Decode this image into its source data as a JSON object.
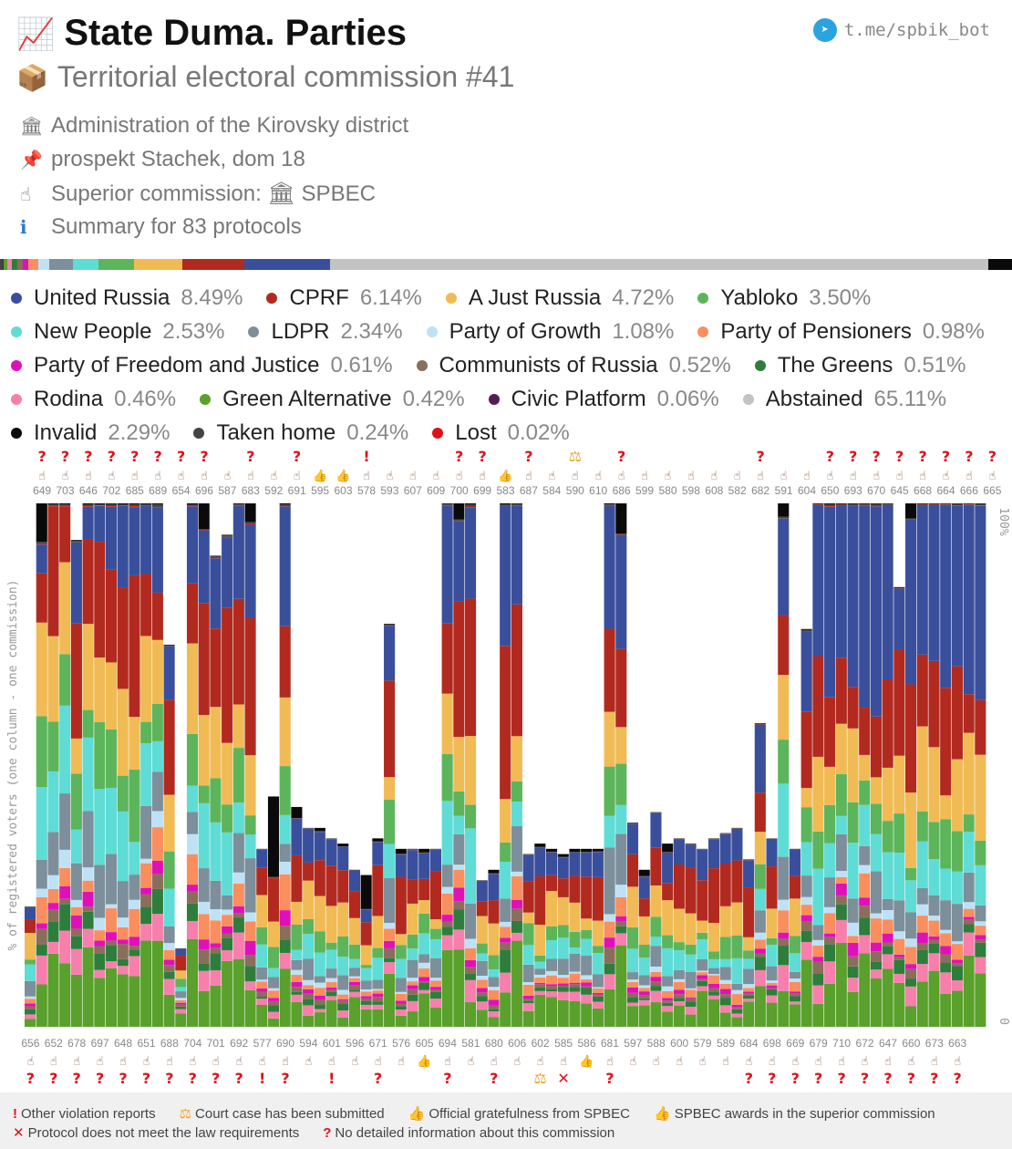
{
  "header": {
    "title": "State Duma. Parties",
    "subtitle": "Territorial electoral commission #41",
    "telegram": "t.me/spbik_bot",
    "admin": "Administration of the Kirovsky district",
    "address": "prospekt Stachek, dom 18",
    "superior": "Superior commission: 🏛 SPBEC",
    "summary": "Summary for 83 protocols"
  },
  "legend": [
    {
      "name": "United Russia",
      "pct": "8.49%",
      "color": "#3a4f9c"
    },
    {
      "name": "CPRF",
      "pct": "6.14%",
      "color": "#b22a1f"
    },
    {
      "name": "A Just Russia",
      "pct": "4.72%",
      "color": "#f0bb55"
    },
    {
      "name": "Yabloko",
      "pct": "3.50%",
      "color": "#5db55b"
    },
    {
      "name": "New People",
      "pct": "2.53%",
      "color": "#5fdcd5"
    },
    {
      "name": "LDPR",
      "pct": "2.34%",
      "color": "#7c8f9b"
    },
    {
      "name": "Party of Growth",
      "pct": "1.08%",
      "color": "#bfe1f5"
    },
    {
      "name": "Party of Pensioners",
      "pct": "0.98%",
      "color": "#fa8e5e"
    },
    {
      "name": "Party of Freedom and Justice",
      "pct": "0.61%",
      "color": "#e010b9"
    },
    {
      "name": "Communists of Russia",
      "pct": "0.52%",
      "color": "#8b6d5c"
    },
    {
      "name": "The Greens",
      "pct": "0.51%",
      "color": "#2e7d3c"
    },
    {
      "name": "Rodina",
      "pct": "0.46%",
      "color": "#f67fab"
    },
    {
      "name": "Green Alternative",
      "pct": "0.42%",
      "color": "#5aa02c"
    },
    {
      "name": "Civic Platform",
      "pct": "0.06%",
      "color": "#5a1a5a"
    },
    {
      "name": "Abstained",
      "pct": "65.11%",
      "color": "#c3c3c3"
    },
    {
      "name": "Invalid",
      "pct": "2.29%",
      "color": "#0a0a0a"
    },
    {
      "name": "Taken home",
      "pct": "0.24%",
      "color": "#444444"
    },
    {
      "name": "Lost",
      "pct": "0.02%",
      "color": "#e0101a"
    }
  ],
  "chart_data": {
    "type": "bar",
    "stacked": true,
    "ylabel": "% of registered voters (one column - one commission)",
    "y_tick_labels": [
      "0",
      "100%"
    ],
    "ylim": [
      0,
      100
    ],
    "categories": [
      "656",
      "649",
      "652",
      "703",
      "678",
      "646",
      "697",
      "702",
      "648",
      "685",
      "651",
      "689",
      "654",
      "688",
      "696",
      "704",
      "587",
      "701",
      "683",
      "692",
      "592",
      "577",
      "691",
      "690",
      "595",
      "594",
      "603",
      "601",
      "578",
      "596",
      "593",
      "671",
      "607",
      "576",
      "609",
      "605",
      "700",
      "694",
      "699",
      "581",
      "583",
      "680",
      "687",
      "606",
      "584",
      "602",
      "590",
      "585",
      "610",
      "586",
      "686",
      "681",
      "599",
      "597",
      "580",
      "588",
      "598",
      "600",
      "608",
      "579",
      "582",
      "589",
      "682",
      "684",
      "591",
      "698",
      "604",
      "669",
      "650",
      "679",
      "693",
      "710",
      "670",
      "672",
      "645",
      "647",
      "668",
      "660",
      "664",
      "673",
      "666",
      "663",
      "665"
    ],
    "top_labels": [
      "649",
      "703",
      "646",
      "702",
      "685",
      "689",
      "654",
      "696",
      "587",
      "683",
      "592",
      "691",
      "595",
      "603",
      "578",
      "593",
      "607",
      "609",
      "700",
      "699",
      "583",
      "687",
      "584",
      "590",
      "610",
      "686",
      "599",
      "580",
      "598",
      "608",
      "582",
      "682",
      "591",
      "604",
      "650",
      "693",
      "670",
      "645",
      "668",
      "664",
      "666",
      "665"
    ],
    "bottom_labels": [
      "656",
      "652",
      "678",
      "697",
      "648",
      "651",
      "688",
      "704",
      "701",
      "692",
      "577",
      "690",
      "594",
      "601",
      "596",
      "671",
      "576",
      "605",
      "694",
      "581",
      "680",
      "606",
      "602",
      "585",
      "586",
      "681",
      "597",
      "588",
      "600",
      "579",
      "589",
      "684",
      "698",
      "669",
      "679",
      "710",
      "672",
      "647",
      "660",
      "673",
      "663"
    ],
    "top_marks": [
      {
        "v": "?",
        "h": "aw"
      },
      {
        "v": "?",
        "h": "aw"
      },
      {
        "v": "?",
        "h": "aw"
      },
      {
        "v": "?",
        "h": "aw"
      },
      {
        "v": "?",
        "h": "aw"
      },
      {
        "v": "?",
        "h": "aw"
      },
      {
        "v": "?",
        "h": "aw"
      },
      {
        "v": "?",
        "h": "aw"
      },
      {
        "v": "",
        "h": "aw"
      },
      {
        "v": "?",
        "h": "aw"
      },
      {
        "v": "",
        "h": "aw"
      },
      {
        "v": "?",
        "h": "aw"
      },
      {
        "v": "",
        "h": "gr"
      },
      {
        "v": "",
        "h": "gr"
      },
      {
        "v": "!",
        "h": "aw"
      },
      {
        "v": "",
        "h": "aw"
      },
      {
        "v": "",
        "h": "aw"
      },
      {
        "v": "",
        "h": "aw"
      },
      {
        "v": "?",
        "h": "aw"
      },
      {
        "v": "?",
        "h": "aw"
      },
      {
        "v": "",
        "h": "gr"
      },
      {
        "v": "?",
        "h": "aw"
      },
      {
        "v": "",
        "h": "aw"
      },
      {
        "v": "⚖",
        "h": "aw"
      },
      {
        "v": "",
        "h": "aw"
      },
      {
        "v": "?",
        "h": "aw"
      },
      {
        "v": "",
        "h": "aw"
      },
      {
        "v": "",
        "h": "aw"
      },
      {
        "v": "",
        "h": "aw"
      },
      {
        "v": "",
        "h": "aw"
      },
      {
        "v": "",
        "h": "aw"
      },
      {
        "v": "?",
        "h": "aw"
      },
      {
        "v": "",
        "h": "aw"
      },
      {
        "v": "",
        "h": "aw"
      },
      {
        "v": "?",
        "h": "aw"
      },
      {
        "v": "?",
        "h": "aw"
      },
      {
        "v": "?",
        "h": "aw"
      },
      {
        "v": "?",
        "h": "aw"
      },
      {
        "v": "?",
        "h": "aw"
      },
      {
        "v": "?",
        "h": "aw"
      },
      {
        "v": "?",
        "h": "aw"
      },
      {
        "v": "?",
        "h": "aw"
      }
    ],
    "bottom_marks": [
      {
        "v": "?",
        "h": "aw"
      },
      {
        "v": "?",
        "h": "aw"
      },
      {
        "v": "?",
        "h": "aw"
      },
      {
        "v": "?",
        "h": "aw"
      },
      {
        "v": "?",
        "h": "aw"
      },
      {
        "v": "?",
        "h": "aw"
      },
      {
        "v": "?",
        "h": "aw"
      },
      {
        "v": "?",
        "h": "aw"
      },
      {
        "v": "?",
        "h": "aw"
      },
      {
        "v": "?",
        "h": "aw"
      },
      {
        "v": "!",
        "h": "aw"
      },
      {
        "v": "?",
        "h": "aw"
      },
      {
        "v": "",
        "h": "aw"
      },
      {
        "v": "!",
        "h": "aw"
      },
      {
        "v": "",
        "h": "aw"
      },
      {
        "v": "?",
        "h": "aw"
      },
      {
        "v": "",
        "h": "aw"
      },
      {
        "v": "",
        "h": "gr"
      },
      {
        "v": "?",
        "h": "aw"
      },
      {
        "v": "",
        "h": "aw"
      },
      {
        "v": "?",
        "h": "aw"
      },
      {
        "v": "",
        "h": "aw"
      },
      {
        "v": "⚖",
        "h": "aw"
      },
      {
        "v": "✕",
        "h": "aw"
      },
      {
        "v": "",
        "h": "gr"
      },
      {
        "v": "?",
        "h": "aw"
      },
      {
        "v": "",
        "h": "aw"
      },
      {
        "v": "",
        "h": "aw"
      },
      {
        "v": "",
        "h": "aw"
      },
      {
        "v": "",
        "h": "aw"
      },
      {
        "v": "",
        "h": "aw"
      },
      {
        "v": "?",
        "h": "aw"
      },
      {
        "v": "?",
        "h": "aw"
      },
      {
        "v": "?",
        "h": "aw"
      },
      {
        "v": "?",
        "h": "aw"
      },
      {
        "v": "?",
        "h": "aw"
      },
      {
        "v": "?",
        "h": "aw"
      },
      {
        "v": "?",
        "h": "aw"
      },
      {
        "v": "?",
        "h": "aw"
      },
      {
        "v": "?",
        "h": "aw"
      },
      {
        "v": "?",
        "h": "aw"
      }
    ],
    "series_order": [
      "Green Alternative",
      "Rodina",
      "The Greens",
      "Communists of Russia",
      "Party of Freedom and Justice",
      "Party of Pensioners",
      "Party of Growth",
      "LDPR",
      "New People",
      "Yabloko",
      "A Just Russia",
      "CPRF",
      "United Russia",
      "Lost",
      "Taken home",
      "Invalid"
    ],
    "base_share": [
      13,
      4,
      3,
      2,
      2,
      4,
      2,
      8,
      10,
      9,
      15,
      22,
      6,
      0.1,
      0.3,
      0.4
    ],
    "turnout": [
      23,
      100,
      100,
      100,
      93,
      100,
      100,
      100,
      100,
      100,
      100,
      100,
      73,
      15,
      100,
      100,
      90,
      94,
      100,
      100,
      34,
      44,
      100,
      42,
      38,
      38,
      36,
      35,
      30,
      29,
      36,
      77,
      34,
      34,
      34,
      34,
      100,
      100,
      100,
      28,
      30,
      100,
      100,
      33,
      35,
      34,
      33,
      34,
      34,
      34,
      100,
      100,
      39,
      30,
      41,
      35,
      36,
      35,
      34,
      36,
      37,
      38,
      32,
      58,
      36,
      100,
      34,
      76,
      100,
      100,
      100,
      100,
      100,
      100,
      100,
      84,
      100,
      100,
      100,
      100,
      100,
      100,
      100
    ],
    "ur_share": [
      10,
      6,
      0,
      0,
      20,
      7,
      8,
      15,
      18,
      14,
      16,
      16,
      20,
      10,
      12,
      17,
      20,
      18,
      22,
      20,
      12,
      0,
      22,
      20,
      20,
      18,
      18,
      17,
      14,
      15,
      16,
      16,
      14,
      16,
      14,
      14,
      30,
      20,
      20,
      14,
      16,
      30,
      25,
      16,
      18,
      16,
      16,
      16,
      16,
      20,
      25,
      30,
      18,
      18,
      20,
      18,
      18,
      18,
      18,
      18,
      18,
      20,
      20,
      22,
      20,
      22,
      18,
      25,
      40,
      45,
      40,
      45,
      50,
      55,
      60,
      20,
      55,
      40,
      50,
      55,
      55,
      55,
      55
    ],
    "invalid_share": [
      0,
      8,
      0,
      0,
      0,
      0,
      0,
      0,
      0,
      0,
      0,
      0,
      0,
      0,
      0,
      6,
      0,
      0,
      0,
      4,
      0,
      55,
      0,
      6,
      0,
      2,
      0,
      2,
      0,
      40,
      2,
      0,
      3,
      0,
      2,
      0,
      0,
      4,
      0,
      0,
      2,
      0,
      0,
      0,
      2,
      2,
      2,
      2,
      2,
      2,
      0,
      8,
      0,
      5,
      0,
      5,
      0,
      0,
      0,
      0,
      0,
      0,
      0,
      0,
      0,
      3,
      0,
      0,
      0,
      0,
      0,
      0,
      0,
      0,
      0,
      0,
      5,
      0,
      0,
      0,
      0,
      0,
      0
    ],
    "seeds": [
      656,
      649,
      652,
      703,
      678,
      646,
      697,
      702,
      648,
      685,
      651,
      689,
      654,
      688,
      696,
      704,
      587,
      701,
      683,
      692,
      592,
      577,
      691,
      690,
      595,
      594,
      603,
      601,
      578,
      596,
      593,
      671,
      607,
      576,
      609,
      605,
      700,
      694,
      699,
      581,
      583,
      680,
      687,
      606,
      584,
      602,
      590,
      585,
      610,
      586,
      686,
      681,
      599,
      597,
      580,
      588,
      598,
      600,
      608,
      579,
      582,
      589,
      682,
      684,
      591,
      698,
      604,
      669,
      650,
      679,
      693,
      710,
      670,
      672,
      645,
      647,
      668,
      660,
      664,
      673,
      666,
      663,
      665
    ]
  },
  "footer": {
    "row1": [
      {
        "sym": "!",
        "text": "Other violation reports",
        "color": "#e0101a"
      },
      {
        "sym": "⚖",
        "text": "Court case has been submitted",
        "color": "#f0a020"
      },
      {
        "sym": "👍",
        "text": "Official gratefulness from SPBEC",
        "color": "#6b4a33"
      },
      {
        "sym": "👍",
        "text": "SPBEC awards in the superior commission",
        "color": "#6b4a33"
      }
    ],
    "row2": [
      {
        "sym": "✕",
        "text": "Protocol does not meet the law requirements",
        "color": "#e0101a"
      },
      {
        "sym": "?",
        "text": "No detailed information about this commission",
        "color": "#e0101a"
      }
    ]
  }
}
